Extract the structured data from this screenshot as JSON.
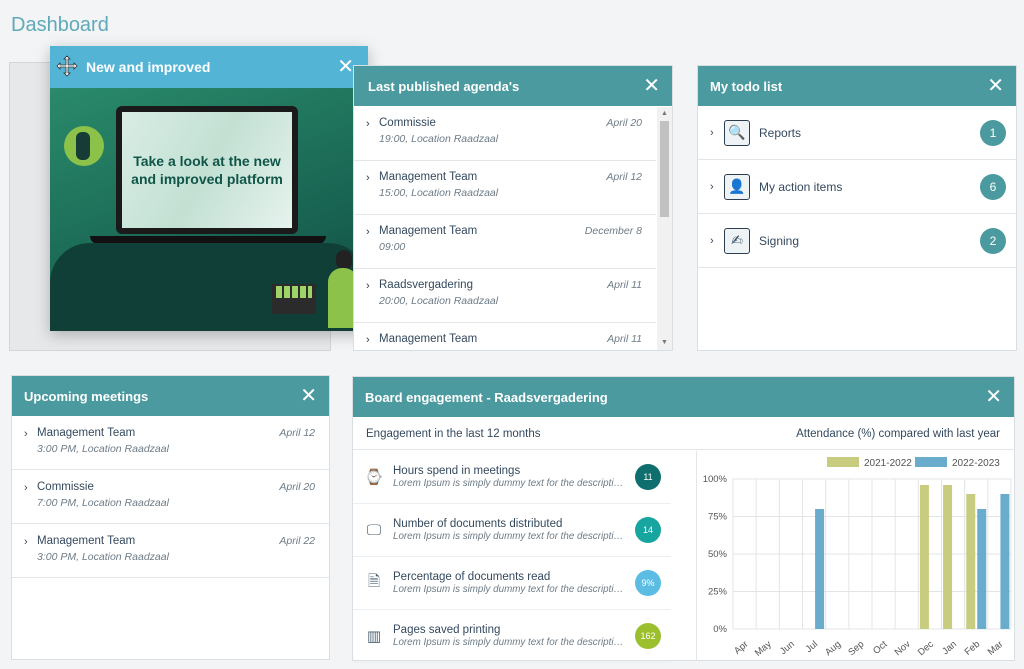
{
  "page": {
    "title": "Dashboard"
  },
  "promo": {
    "title": "New and improved",
    "screen_text": "Take a look at the new and improved platform"
  },
  "agenda": {
    "title": "Last published agenda's",
    "items": [
      {
        "name": "Commissie",
        "detail": "19:00, Location Raadzaal",
        "date": "April 20"
      },
      {
        "name": "Management Team",
        "detail": "15:00, Location Raadzaal",
        "date": "April 12"
      },
      {
        "name": "Management Team",
        "detail": "09:00",
        "date": "December 8"
      },
      {
        "name": "Raadsvergadering",
        "detail": "20:00, Location Raadzaal",
        "date": "April 11"
      },
      {
        "name": "Management Team",
        "detail": "",
        "date": "April 11"
      }
    ]
  },
  "todo": {
    "title": "My todo list",
    "items": [
      {
        "label": "Reports",
        "count": "1",
        "icon": "reports-icon"
      },
      {
        "label": "My action items",
        "count": "6",
        "icon": "action-items-icon"
      },
      {
        "label": "Signing",
        "count": "2",
        "icon": "signing-icon"
      }
    ]
  },
  "upcoming": {
    "title": "Upcoming meetings",
    "items": [
      {
        "name": "Management Team",
        "detail": "3:00 PM, Location Raadzaal",
        "date": "April 12"
      },
      {
        "name": "Commissie",
        "detail": "7:00 PM, Location Raadzaal",
        "date": "April 20"
      },
      {
        "name": "Management Team",
        "detail": "3:00 PM, Location Raadzaal",
        "date": "April 22"
      }
    ]
  },
  "board": {
    "title": "Board engagement - Raadsvergadering",
    "left_caption": "Engagement in the last 12 months",
    "right_caption": "Attendance (%) compared with last year",
    "metrics": [
      {
        "title": "Hours spend in meetings",
        "desc": "Lorem Ipsum is simply dummy text for the description of the hours attended of the board members",
        "value": "11",
        "color": "#0f6e6e",
        "icon": "clock-icon"
      },
      {
        "title": "Number of documents distributed",
        "desc": "Lorem Ipsum is simply dummy text for the description of the distributed documents of the members",
        "value": "14",
        "color": "#17a5a0",
        "icon": "monitor-icon"
      },
      {
        "title": "Percentage of documents read",
        "desc": "Lorem Ipsum is simply dummy text for the description of the documents read of the board members",
        "value": "9%",
        "color": "#5bbde4",
        "icon": "document-icon"
      },
      {
        "title": "Pages saved printing",
        "desc": "Lorem Ipsum is simply dummy text for the description of the pages saved printing of the members",
        "value": "162",
        "color": "#9cbf2e",
        "icon": "bar-chart-icon"
      }
    ]
  },
  "chart_data": {
    "type": "bar",
    "categories": [
      "Apr",
      "May",
      "Jun",
      "Jul",
      "Aug",
      "Sep",
      "Oct",
      "Nov",
      "Dec",
      "Jan",
      "Feb",
      "Mar"
    ],
    "series": [
      {
        "name": "2021-2022",
        "color": "#c8cc7e",
        "values": [
          0,
          0,
          0,
          0,
          0,
          0,
          0,
          0,
          96,
          96,
          90,
          0
        ]
      },
      {
        "name": "2022-2023",
        "color": "#6aaccb",
        "values": [
          0,
          0,
          0,
          80,
          0,
          0,
          0,
          0,
          0,
          0,
          80,
          90
        ]
      }
    ],
    "yticks": [
      "0%",
      "25%",
      "50%",
      "75%",
      "100%"
    ],
    "ylim": [
      0,
      100
    ],
    "legend": "top-right",
    "grid": true
  }
}
